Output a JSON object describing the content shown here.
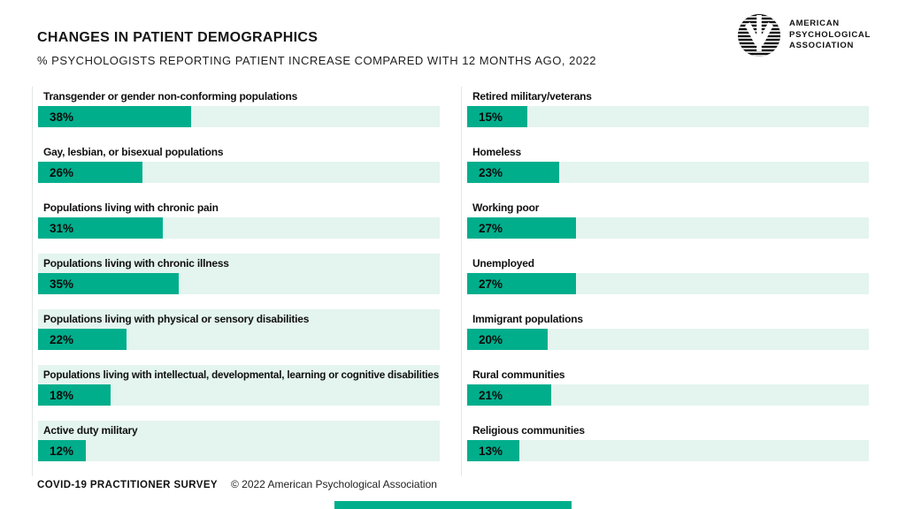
{
  "header": {
    "title": "CHANGES IN PATIENT DEMOGRAPHICS",
    "subtitle": "% PSYCHOLOGISTS REPORTING PATIENT INCREASE COMPARED WITH 12 MONTHS AGO, 2022"
  },
  "logo": {
    "line1": "AMERICAN",
    "line2": "PSYCHOLOGICAL",
    "line3": "ASSOCIATION"
  },
  "footer": {
    "survey": "COVID-19 PRACTITIONER SURVEY",
    "copyright": "© 2022 American Psychological Association"
  },
  "colors": {
    "bar_fill": "#00AE8C",
    "bar_track": "#E4F4EF",
    "text": "#161616"
  },
  "chart_data": {
    "type": "bar",
    "orientation": "horizontal",
    "title": "CHANGES IN PATIENT DEMOGRAPHICS",
    "subtitle": "% PSYCHOLOGISTS REPORTING PATIENT INCREASE COMPARED WITH 12 MONTHS AGO, 2022",
    "unit": "%",
    "xlim": [
      0,
      100
    ],
    "value_labels": "inside-bar",
    "columns": [
      {
        "side": "left",
        "rows": [
          {
            "label": "Transgender or gender non-conforming populations",
            "value": 38,
            "panel_background": false
          },
          {
            "label": "Gay, lesbian, or bisexual populations",
            "value": 26,
            "panel_background": false
          },
          {
            "label": "Populations living with chronic pain",
            "value": 31,
            "panel_background": false
          },
          {
            "label": "Populations living with chronic illness",
            "value": 35,
            "panel_background": true
          },
          {
            "label": "Populations living with physical or sensory disabilities",
            "value": 22,
            "panel_background": true
          },
          {
            "label": "Populations living with intellectual, developmental, learning or cognitive disabilities",
            "value": 18,
            "panel_background": true
          },
          {
            "label": "Active duty military",
            "value": 12,
            "panel_background": true
          }
        ]
      },
      {
        "side": "right",
        "rows": [
          {
            "label": "Retired military/veterans",
            "value": 15,
            "panel_background": false
          },
          {
            "label": "Homeless",
            "value": 23,
            "panel_background": false
          },
          {
            "label": "Working poor",
            "value": 27,
            "panel_background": false
          },
          {
            "label": "Unemployed",
            "value": 27,
            "panel_background": false
          },
          {
            "label": "Immigrant populations",
            "value": 20,
            "panel_background": false
          },
          {
            "label": "Rural communities",
            "value": 21,
            "panel_background": false
          },
          {
            "label": "Religious communities",
            "value": 13,
            "panel_background": false
          }
        ]
      }
    ]
  }
}
